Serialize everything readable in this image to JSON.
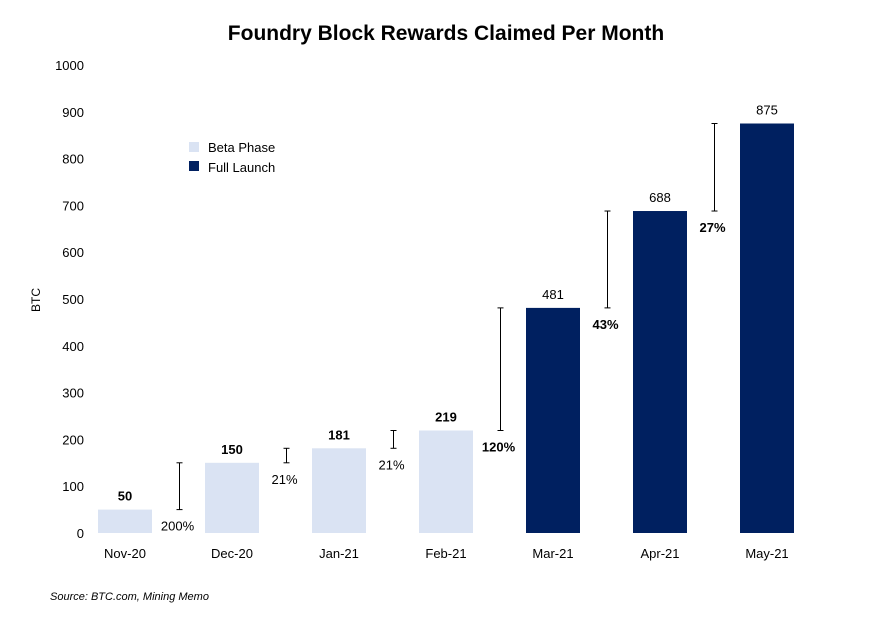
{
  "chart_data": {
    "type": "bar",
    "title": "Foundry Block Rewards Claimed Per Month",
    "ylabel": "BTC",
    "xlabel": "",
    "ylim": [
      0,
      1000
    ],
    "yticks": [
      "0",
      "100",
      "200",
      "300",
      "400",
      "500",
      "600",
      "700",
      "800",
      "900",
      "1000"
    ],
    "grid": false,
    "legend_position": "top-left",
    "categories": [
      "Nov-20",
      "Dec-20",
      "Jan-21",
      "Feb-21",
      "Mar-21",
      "Apr-21",
      "May-21"
    ],
    "values": [
      50,
      150,
      181,
      219,
      481,
      688,
      875
    ],
    "value_labels": [
      "50",
      "150",
      "181",
      "219",
      "481",
      "688",
      "875"
    ],
    "phase": [
      "Beta Phase",
      "Beta Phase",
      "Beta Phase",
      "Beta Phase",
      "Full Launch",
      "Full Launch",
      "Full Launch"
    ],
    "series": [
      {
        "name": "Beta Phase",
        "color": "#dae3f3"
      },
      {
        "name": "Full Launch",
        "color": "#002060"
      }
    ],
    "growth_labels": [
      "200%",
      "21%",
      "21%",
      "120%",
      "43%",
      "27%"
    ],
    "growth_label_bold": [
      false,
      false,
      false,
      true,
      true,
      true
    ],
    "value_label_bold": [
      true,
      true,
      true,
      true,
      false,
      false,
      false
    ],
    "source": "Source: BTC.com, Mining Memo"
  }
}
